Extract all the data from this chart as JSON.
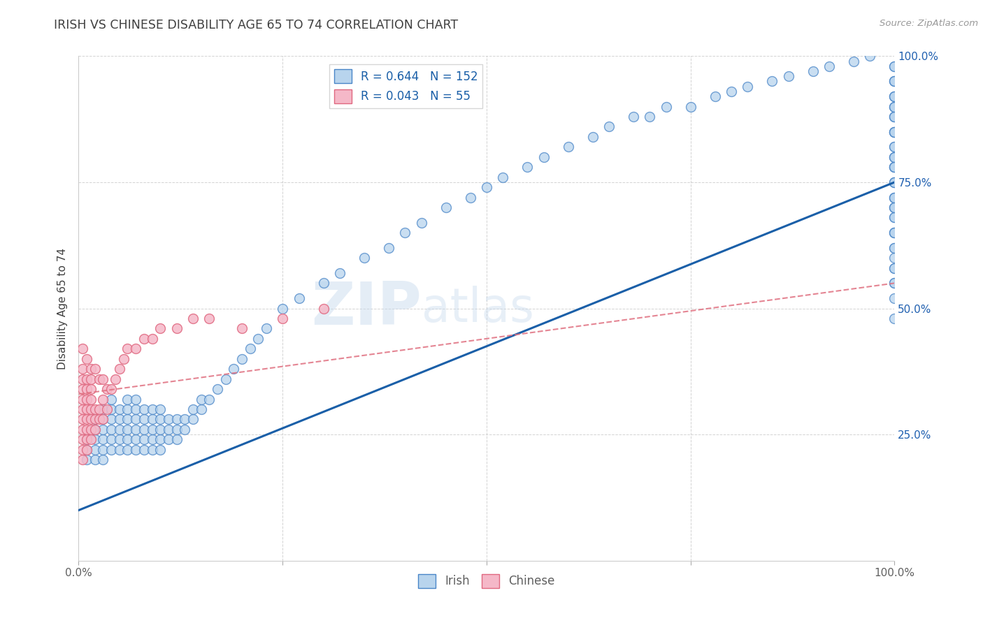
{
  "title": "IRISH VS CHINESE DISABILITY AGE 65 TO 74 CORRELATION CHART",
  "source": "Source: ZipAtlas.com",
  "ylabel": "Disability Age 65 to 74",
  "watermark": "ZIPAtlas",
  "irish_R": 0.644,
  "irish_N": 152,
  "chinese_R": 0.043,
  "chinese_N": 55,
  "irish_color": "#b8d4ed",
  "irish_edge_color": "#4a86c8",
  "chinese_color": "#f5b8c8",
  "chinese_edge_color": "#e06880",
  "irish_line_color": "#1a5fa8",
  "chinese_line_color": "#e07080",
  "background_color": "#ffffff",
  "grid_color": "#c8c8c8",
  "title_color": "#404040",
  "axis_label_color": "#404040",
  "tick_label_color": "#606060",
  "right_tick_color": "#2060b0",
  "legend_R_color": "#1a5fa8",
  "xlim": [
    0,
    1
  ],
  "ylim": [
    0,
    1
  ],
  "irish_scatter_x": [
    0.01,
    0.01,
    0.01,
    0.02,
    0.02,
    0.02,
    0.02,
    0.02,
    0.03,
    0.03,
    0.03,
    0.03,
    0.03,
    0.03,
    0.04,
    0.04,
    0.04,
    0.04,
    0.04,
    0.04,
    0.05,
    0.05,
    0.05,
    0.05,
    0.05,
    0.06,
    0.06,
    0.06,
    0.06,
    0.06,
    0.06,
    0.07,
    0.07,
    0.07,
    0.07,
    0.07,
    0.07,
    0.08,
    0.08,
    0.08,
    0.08,
    0.08,
    0.09,
    0.09,
    0.09,
    0.09,
    0.09,
    0.1,
    0.1,
    0.1,
    0.1,
    0.1,
    0.11,
    0.11,
    0.11,
    0.12,
    0.12,
    0.12,
    0.13,
    0.13,
    0.14,
    0.14,
    0.15,
    0.15,
    0.16,
    0.17,
    0.18,
    0.19,
    0.2,
    0.21,
    0.22,
    0.23,
    0.25,
    0.27,
    0.3,
    0.32,
    0.35,
    0.38,
    0.4,
    0.42,
    0.45,
    0.48,
    0.5,
    0.52,
    0.55,
    0.57,
    0.6,
    0.63,
    0.65,
    0.68,
    0.7,
    0.72,
    0.75,
    0.78,
    0.8,
    0.82,
    0.85,
    0.87,
    0.9,
    0.92,
    0.95,
    0.97,
    1.0,
    1.0,
    1.0,
    1.0,
    1.0,
    1.0,
    1.0,
    1.0,
    1.0,
    1.0,
    1.0,
    1.0,
    1.0,
    1.0,
    1.0,
    1.0,
    1.0,
    1.0,
    1.0,
    1.0,
    1.0,
    1.0,
    1.0,
    1.0,
    1.0,
    1.0,
    1.0,
    1.0,
    1.0,
    1.0,
    1.0,
    1.0,
    1.0,
    1.0,
    1.0,
    1.0,
    1.0,
    1.0,
    1.0,
    1.0,
    1.0,
    1.0,
    1.0,
    1.0,
    1.0,
    1.0,
    1.0,
    1.0,
    1.0,
    1.0
  ],
  "irish_scatter_y": [
    0.2,
    0.22,
    0.24,
    0.2,
    0.22,
    0.24,
    0.26,
    0.28,
    0.2,
    0.22,
    0.24,
    0.26,
    0.28,
    0.3,
    0.22,
    0.24,
    0.26,
    0.28,
    0.3,
    0.32,
    0.22,
    0.24,
    0.26,
    0.28,
    0.3,
    0.22,
    0.24,
    0.26,
    0.28,
    0.3,
    0.32,
    0.22,
    0.24,
    0.26,
    0.28,
    0.3,
    0.32,
    0.22,
    0.24,
    0.26,
    0.28,
    0.3,
    0.22,
    0.24,
    0.26,
    0.28,
    0.3,
    0.22,
    0.24,
    0.26,
    0.28,
    0.3,
    0.24,
    0.26,
    0.28,
    0.24,
    0.26,
    0.28,
    0.26,
    0.28,
    0.28,
    0.3,
    0.3,
    0.32,
    0.32,
    0.34,
    0.36,
    0.38,
    0.4,
    0.42,
    0.44,
    0.46,
    0.5,
    0.52,
    0.55,
    0.57,
    0.6,
    0.62,
    0.65,
    0.67,
    0.7,
    0.72,
    0.74,
    0.76,
    0.78,
    0.8,
    0.82,
    0.84,
    0.86,
    0.88,
    0.88,
    0.9,
    0.9,
    0.92,
    0.93,
    0.94,
    0.95,
    0.96,
    0.97,
    0.98,
    0.99,
    1.0,
    0.55,
    0.58,
    0.62,
    0.65,
    0.6,
    0.52,
    0.48,
    0.55,
    0.7,
    0.72,
    0.65,
    0.75,
    0.8,
    0.68,
    0.62,
    0.58,
    0.7,
    0.78,
    0.85,
    0.72,
    0.9,
    0.85,
    0.95,
    0.88,
    0.92,
    0.78,
    0.8,
    0.95,
    0.98,
    0.88,
    0.92,
    0.75,
    0.82,
    0.68,
    0.72,
    0.85,
    0.9,
    0.78,
    0.95,
    0.85,
    0.8,
    0.75,
    0.88,
    0.92,
    0.7,
    0.98,
    0.65,
    0.82,
    0.78,
    0.9
  ],
  "chinese_scatter_x": [
    0.005,
    0.005,
    0.005,
    0.005,
    0.005,
    0.005,
    0.005,
    0.005,
    0.005,
    0.005,
    0.005,
    0.01,
    0.01,
    0.01,
    0.01,
    0.01,
    0.01,
    0.01,
    0.01,
    0.01,
    0.015,
    0.015,
    0.015,
    0.015,
    0.015,
    0.015,
    0.015,
    0.015,
    0.02,
    0.02,
    0.02,
    0.02,
    0.025,
    0.025,
    0.025,
    0.03,
    0.03,
    0.03,
    0.035,
    0.035,
    0.04,
    0.045,
    0.05,
    0.055,
    0.06,
    0.07,
    0.08,
    0.09,
    0.1,
    0.12,
    0.14,
    0.16,
    0.2,
    0.25,
    0.3
  ],
  "chinese_scatter_y": [
    0.2,
    0.22,
    0.24,
    0.26,
    0.28,
    0.3,
    0.32,
    0.34,
    0.36,
    0.38,
    0.42,
    0.22,
    0.24,
    0.26,
    0.28,
    0.3,
    0.32,
    0.34,
    0.36,
    0.4,
    0.24,
    0.26,
    0.28,
    0.3,
    0.32,
    0.34,
    0.36,
    0.38,
    0.26,
    0.28,
    0.3,
    0.38,
    0.28,
    0.3,
    0.36,
    0.28,
    0.32,
    0.36,
    0.3,
    0.34,
    0.34,
    0.36,
    0.38,
    0.4,
    0.42,
    0.42,
    0.44,
    0.44,
    0.46,
    0.46,
    0.48,
    0.48,
    0.46,
    0.48,
    0.5
  ],
  "irish_line_x0": 0.0,
  "irish_line_y0": 0.1,
  "irish_line_x1": 1.0,
  "irish_line_y1": 0.75,
  "chinese_line_x0": 0.0,
  "chinese_line_y0": 0.33,
  "chinese_line_x1": 1.0,
  "chinese_line_y1": 0.55
}
